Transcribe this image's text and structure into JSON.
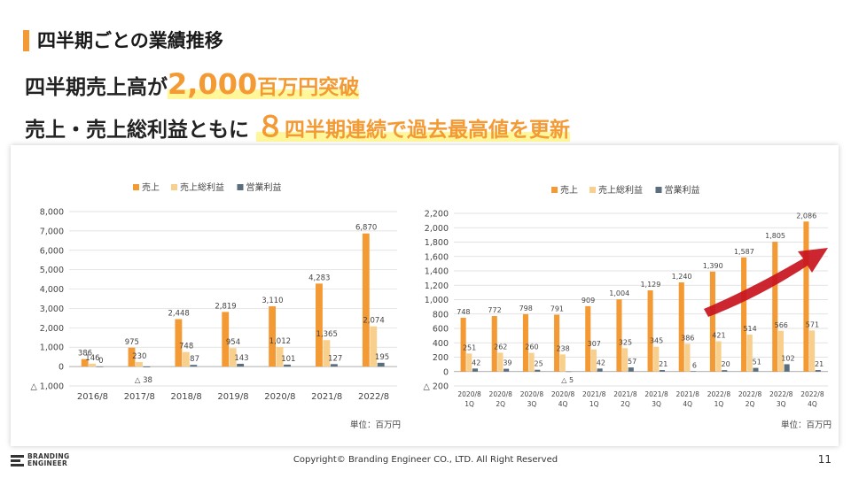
{
  "header": {
    "title": "四半期ごとの業績推移",
    "line1_pre": "四半期売上高が",
    "line1_big": "2,000",
    "line1_post": "百万円突破",
    "line2_pre": "売上・売上総利益ともに ",
    "line2_num": "８",
    "line2_post": "四半期連続で過去最高値を更新"
  },
  "colors": {
    "sales": "#f39a35",
    "gross": "#f8cf8c",
    "operating": "#5b6e7d",
    "arrow": "#c8141e",
    "accent": "#f39a35",
    "highlight": "#fff79a"
  },
  "chart_data": [
    {
      "type": "bar",
      "legend_position": "top",
      "categories": [
        "2016/8",
        "2017/8",
        "2018/8",
        "2019/8",
        "2020/8",
        "2021/8",
        "2022/8"
      ],
      "series": [
        {
          "name": "売上",
          "values": [
            386,
            975,
            2448,
            2819,
            3110,
            4283,
            6870
          ],
          "labels": [
            "386",
            "975",
            "2,448",
            "2,819",
            "3,110",
            "4,283",
            "6,870"
          ]
        },
        {
          "name": "売上総利益",
          "values": [
            146,
            230,
            748,
            954,
            1012,
            1365,
            2074
          ],
          "labels": [
            "146",
            "230",
            "748",
            "954",
            "1,012",
            "1,365",
            "2,074"
          ]
        },
        {
          "name": "営業利益",
          "values": [
            0,
            -38,
            87,
            143,
            101,
            127,
            195
          ],
          "labels": [
            "0",
            "△ 38",
            "87",
            "143",
            "101",
            "127",
            "195"
          ]
        }
      ],
      "ylim": [
        -1000,
        8000
      ],
      "yticks": [
        -1000,
        0,
        1000,
        2000,
        3000,
        4000,
        5000,
        6000,
        7000,
        8000
      ],
      "ytick_labels": [
        "△ 1,000",
        "0",
        "1,000",
        "2,000",
        "3,000",
        "4,000",
        "5,000",
        "6,000",
        "7,000",
        "8,000"
      ],
      "unit_note": "単位：百万円"
    },
    {
      "type": "bar",
      "legend_position": "top",
      "categories": [
        "2020/8 1Q",
        "2020/8 2Q",
        "2020/8 3Q",
        "2020/8 4Q",
        "2021/8 1Q",
        "2021/8 2Q",
        "2021/8 3Q",
        "2021/8 4Q",
        "2022/8 1Q",
        "2022/8 2Q",
        "2022/8 3Q",
        "2022/8 4Q"
      ],
      "category_lines": [
        [
          "2020/8",
          "1Q"
        ],
        [
          "2020/8",
          "2Q"
        ],
        [
          "2020/8",
          "3Q"
        ],
        [
          "2020/8",
          "4Q"
        ],
        [
          "2021/8",
          "1Q"
        ],
        [
          "2021/8",
          "2Q"
        ],
        [
          "2021/8",
          "3Q"
        ],
        [
          "2021/8",
          "4Q"
        ],
        [
          "2022/8",
          "1Q"
        ],
        [
          "2022/8",
          "2Q"
        ],
        [
          "2022/8",
          "3Q"
        ],
        [
          "2022/8",
          "4Q"
        ]
      ],
      "series": [
        {
          "name": "売上",
          "values": [
            748,
            772,
            798,
            791,
            909,
            1004,
            1129,
            1240,
            1390,
            1587,
            1805,
            2086
          ],
          "labels": [
            "748",
            "772",
            "798",
            "791",
            "909",
            "1,004",
            "1,129",
            "1,240",
            "1,390",
            "1,587",
            "1,805",
            "2,086"
          ]
        },
        {
          "name": "売上総利益",
          "values": [
            251,
            262,
            260,
            238,
            307,
            325,
            345,
            386,
            421,
            514,
            566,
            571
          ],
          "labels": [
            "251",
            "262",
            "260",
            "238",
            "307",
            "325",
            "345",
            "386",
            "421",
            "514",
            "566",
            "571"
          ]
        },
        {
          "name": "営業利益",
          "values": [
            42,
            39,
            25,
            -5,
            42,
            57,
            21,
            6,
            20,
            51,
            102,
            21
          ],
          "labels": [
            "42",
            "39",
            "25",
            "△ 5",
            "42",
            "57",
            "21",
            "6",
            "20",
            "51",
            "102",
            "21"
          ]
        }
      ],
      "ylim": [
        -200,
        2200
      ],
      "yticks": [
        -200,
        0,
        200,
        400,
        600,
        800,
        1000,
        1200,
        1400,
        1600,
        1800,
        2000,
        2200
      ],
      "ytick_labels": [
        "△ 200",
        "0",
        "200",
        "400",
        "600",
        "800",
        "1,000",
        "1,200",
        "1,400",
        "1,600",
        "1,800",
        "2,000",
        "2,200"
      ],
      "unit_note": "単位：百万円"
    }
  ],
  "footer": {
    "logo_line1": "BRANDING",
    "logo_line2": "ENGINEER",
    "copyright": "Copyright© Branding Engineer CO., LTD. All Right Reserved",
    "page_number": "11"
  }
}
